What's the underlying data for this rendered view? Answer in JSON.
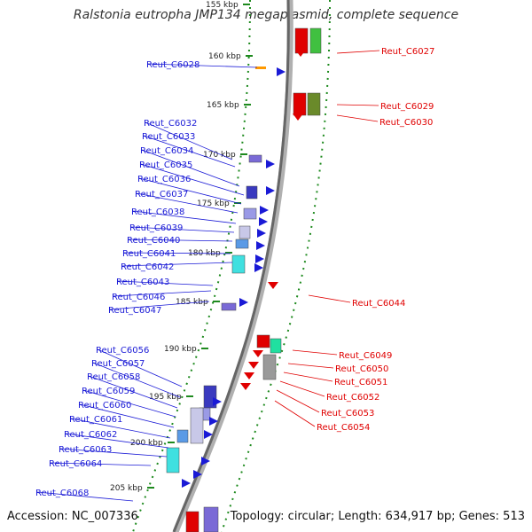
{
  "title": "Ralstonia eutropha JMP134 megaplasmid, complete sequence",
  "accession": "Accession: NC_007336",
  "summary": "Topology: circular; Length: 634,917 bp; Genes: 513",
  "colors": {
    "left_label": "#1a1ad6",
    "right_label": "#e00000",
    "backbone": "#888888",
    "grid_dots": "#1e8a1e"
  },
  "ticks": [
    "155 kbp",
    "160 kbp",
    "165 kbp",
    "170 kbp",
    "175 kbp",
    "180 kbp",
    "185 kbp",
    "190 kbp",
    "195 kbp",
    "200 kbp",
    "205 kbp"
  ],
  "left_labels": [
    "Reut_C6028",
    "Reut_C6032",
    "Reut_C6033",
    "Reut_C6034",
    "Reut_C6035",
    "Reut_C6036",
    "Reut_C6037",
    "Reut_C6038",
    "Reut_C6039",
    "Reut_C6040",
    "Reut_C6041",
    "Reut_C6042",
    "Reut_C6043",
    "Reut_C6046",
    "Reut_C6047",
    "Reut_C6056",
    "Reut_C6057",
    "Reut_C6058",
    "Reut_C6059",
    "Reut_C6060",
    "Reut_C6061",
    "Reut_C6062",
    "Reut_C6063",
    "Reut_C6064",
    "Reut_C6068"
  ],
  "right_labels": [
    "Reut_C6027",
    "Reut_C6029",
    "Reut_C6030",
    "Reut_C6044",
    "Reut_C6049",
    "Reut_C6050",
    "Reut_C6051",
    "Reut_C6052",
    "Reut_C6053",
    "Reut_C6054"
  ]
}
